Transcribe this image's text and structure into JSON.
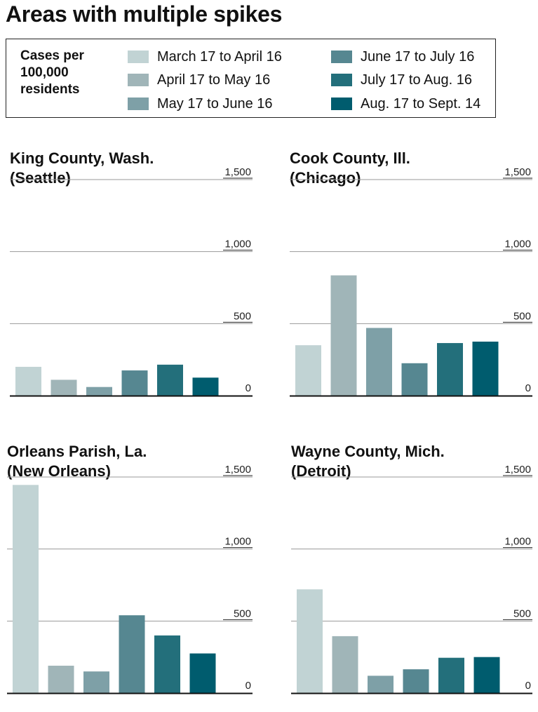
{
  "title": "Areas with multiple spikes",
  "legend": {
    "title_lines": [
      "Cases per",
      "100,000",
      "residents"
    ],
    "items": [
      {
        "label": "March 17 to April 16",
        "color": "#c1d3d4"
      },
      {
        "label": "April 17 to May 16",
        "color": "#a0b5b8"
      },
      {
        "label": "May 17 to June 16",
        "color": "#7ea0a7"
      },
      {
        "label": "June 17 to July 16",
        "color": "#568791"
      },
      {
        "label": "July 17 to Aug. 16",
        "color": "#236f7b"
      },
      {
        "label": "Aug. 17 to Sept. 14",
        "color": "#005c6e"
      }
    ]
  },
  "chart_data": [
    {
      "type": "bar",
      "title_lines": [
        "King County, Wash.",
        "(Seattle)"
      ],
      "categories": [
        "March 17 to April 16",
        "April 17 to May 16",
        "May 17 to June 16",
        "June 17 to July 16",
        "July 17 to Aug. 16",
        "Aug. 17 to Sept. 14"
      ],
      "values": [
        200,
        110,
        60,
        175,
        215,
        125
      ],
      "yticks": [
        "0",
        "500",
        "1,000",
        "1,500"
      ],
      "ylim": [
        0,
        1500
      ]
    },
    {
      "type": "bar",
      "title_lines": [
        "Cook County, Ill.",
        "(Chicago)"
      ],
      "categories": [
        "March 17 to April 16",
        "April 17 to May 16",
        "May 17 to June 16",
        "June 17 to July 16",
        "July 17 to Aug. 16",
        "Aug. 17 to Sept. 14"
      ],
      "values": [
        350,
        835,
        470,
        225,
        365,
        375
      ],
      "yticks": [
        "0",
        "500",
        "1,000",
        "1,500"
      ],
      "ylim": [
        0,
        1500
      ]
    },
    {
      "type": "bar",
      "title_lines": [
        "Orleans Parish, La.",
        "(New Orleans)"
      ],
      "categories": [
        "March 17 to April 16",
        "April 17 to May 16",
        "May 17 to June 16",
        "June 17 to July 16",
        "July 17 to Aug. 16",
        "Aug. 17 to Sept. 14"
      ],
      "values": [
        1445,
        190,
        150,
        540,
        400,
        275
      ],
      "yticks": [
        "0",
        "500",
        "1,000",
        "1,500"
      ],
      "ylim": [
        0,
        1500
      ]
    },
    {
      "type": "bar",
      "title_lines": [
        "Wayne County, Mich.",
        "(Detroit)"
      ],
      "categories": [
        "March 17 to April 16",
        "April 17 to May 16",
        "May 17 to June 16",
        "June 17 to July 16",
        "July 17 to Aug. 16",
        "Aug. 17 to Sept. 14"
      ],
      "values": [
        720,
        395,
        120,
        165,
        245,
        250
      ],
      "yticks": [
        "0",
        "500",
        "1,000",
        "1,500"
      ],
      "ylim": [
        0,
        1500
      ]
    }
  ]
}
